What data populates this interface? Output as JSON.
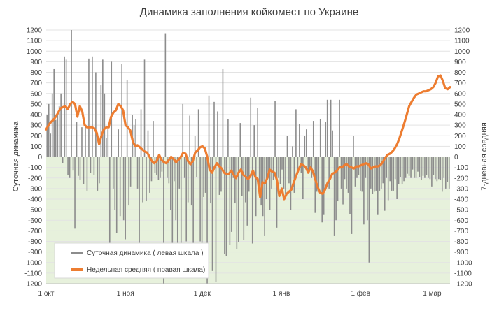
{
  "colors": {
    "bars": "#8c8c8c",
    "average": "#ed7d31",
    "negative_band": "#e7f1dc",
    "grid": "#e3e3e3",
    "text": "#404040"
  },
  "chart_data": {
    "type": "bar",
    "title": "Динамика заполнения койкомест по Украине",
    "ylabel_left": "Суточная динамика",
    "ylabel_right": "7-дневная средняя",
    "ylim": [
      -1200,
      1200
    ],
    "y_ticks": [
      "1200",
      "1100",
      "1000",
      "900",
      "800",
      "700",
      "600",
      "500",
      "400",
      "300",
      "200",
      "100",
      "0",
      "-100",
      "-200",
      "-300",
      "-400",
      "-500",
      "-600",
      "-700",
      "-800",
      "-900",
      "-1000",
      "-1100",
      "-1200"
    ],
    "y_tick_values": [
      1200,
      1100,
      1000,
      900,
      800,
      700,
      600,
      500,
      400,
      300,
      200,
      100,
      0,
      -100,
      -200,
      -300,
      -400,
      -500,
      -600,
      -700,
      -800,
      -900,
      -1000,
      -1100,
      -1200
    ],
    "x_ticks": [
      {
        "label": "1 окт",
        "day": 0
      },
      {
        "label": "1 ноя",
        "day": 31
      },
      {
        "label": "1 дек",
        "day": 61
      },
      {
        "label": "1 янв",
        "day": 92
      },
      {
        "label": "1 фев",
        "day": 123
      },
      {
        "label": "1 мар",
        "day": 151
      }
    ],
    "x_max_day": 158,
    "legend": [
      {
        "label": "Суточная динамика ( левая шкала )",
        "kind": "bar"
      },
      {
        "label": "Недельная средняя ( правая шкала)",
        "kind": "line"
      }
    ],
    "series": [
      {
        "name": "Суточная динамика ( левая шкала )",
        "kind": "bar",
        "values": [
          400,
          500,
          220,
          600,
          830,
          350,
          400,
          480,
          600,
          -60,
          950,
          920,
          -170,
          -200,
          1200,
          -130,
          -680,
          330,
          -180,
          -220,
          280,
          -260,
          280,
          -320,
          930,
          -150,
          950,
          -170,
          800,
          -320,
          -250,
          680,
          920,
          600,
          180,
          260,
          -820,
          900,
          -300,
          -500,
          -720,
          260,
          -560,
          880,
          -600,
          -780,
          730,
          -460,
          -280,
          400,
          300,
          360,
          -300,
          -840,
          450,
          -430,
          920,
          -420,
          250,
          -340,
          -230,
          340,
          -150,
          -170,
          -220,
          -200,
          -140,
          -1200,
          1170,
          -200,
          -250,
          -500,
          -900,
          -230,
          -600,
          -1100,
          -300,
          -1000,
          500,
          -200,
          -800,
          -430,
          390,
          -460,
          -960,
          200,
          -190,
          450,
          -800,
          -1000,
          -380,
          -340,
          -1200,
          580,
          -440,
          -1080,
          520,
          -1180,
          430,
          -360,
          -330,
          830,
          -920,
          -940,
          360,
          -830,
          -710,
          -200,
          -440,
          -870,
          -810,
          320,
          -370,
          -790,
          -430,
          -650,
          -330,
          560,
          -820,
          300,
          -560,
          460,
          -300,
          -460,
          -560,
          -750,
          -400,
          -200,
          -500,
          -300,
          -220,
          530,
          -670,
          -200,
          -260,
          -120,
          -300,
          -350,
          200,
          -250,
          -500,
          100,
          -340,
          450,
          -120,
          310,
          -150,
          -400,
          200,
          260,
          -140,
          -110,
          -200,
          340,
          -530,
          -330,
          -300,
          360,
          -620,
          -550,
          330,
          540,
          -300,
          540,
          250,
          -750,
          -600,
          -420,
          540,
          -300,
          -450,
          -210,
          -300,
          -340,
          -540,
          -730,
          200,
          -280,
          -200,
          -170,
          -320,
          -330,
          -640,
          -200,
          -600,
          -1000,
          -300,
          -350,
          -330,
          -320,
          -550,
          -320,
          -300,
          -250,
          -510,
          -200,
          -410,
          -230,
          -320,
          -320,
          -210,
          -400,
          -260,
          -190,
          -260,
          -230,
          -200,
          -160,
          -180,
          -200,
          -120,
          -200,
          -200,
          -140,
          -190,
          -220,
          -180,
          -200,
          -170,
          -200,
          -210,
          -280,
          -170,
          -210,
          -230,
          -210,
          -220,
          -330,
          -200,
          -300,
          -240,
          -300
        ]
      },
      {
        "name": "Недельная средняя ( правая шкала)",
        "kind": "line",
        "values": [
          260,
          300,
          330,
          350,
          380,
          420,
          460,
          470,
          480,
          450,
          500,
          520,
          500,
          380,
          480,
          430,
          300,
          280,
          280,
          280,
          270,
          230,
          120,
          200,
          260,
          280,
          280,
          380,
          420,
          440,
          500,
          480,
          440,
          300,
          280,
          250,
          150,
          100,
          110,
          90,
          70,
          50,
          40,
          0,
          -40,
          -60,
          -40,
          20,
          -30,
          -50,
          -60,
          -30,
          0,
          -20,
          -50,
          -30,
          0,
          40,
          30,
          -40,
          -70,
          -40,
          40,
          60,
          90,
          100,
          80,
          0,
          -120,
          -150,
          -100,
          -60,
          -90,
          -110,
          -150,
          -160,
          -160,
          -130,
          -170,
          -200,
          -150,
          -120,
          -170,
          -190,
          -210,
          -180,
          -130,
          -190,
          -210,
          -380,
          -240,
          -250,
          -200,
          -120,
          -140,
          -150,
          -220,
          -370,
          -300,
          -400,
          -350,
          -330,
          -310,
          -240,
          -180,
          -120,
          -70,
          -80,
          -100,
          -150,
          -100,
          -140,
          -220,
          -290,
          -340,
          -350,
          -310,
          -250,
          -210,
          -160,
          -150,
          -130,
          -100,
          -100,
          -80,
          -70,
          -90,
          -100,
          -110,
          -90,
          -90,
          -80,
          -70,
          -60,
          -70,
          -110,
          -100,
          -90,
          -90,
          -80,
          -50,
          -10,
          20,
          30,
          50,
          80,
          120,
          180,
          250,
          320,
          400,
          480,
          520,
          560,
          590,
          600,
          610,
          620,
          620,
          630,
          640,
          660,
          700,
          760,
          770,
          720,
          650,
          640,
          660
        ]
      }
    ]
  }
}
